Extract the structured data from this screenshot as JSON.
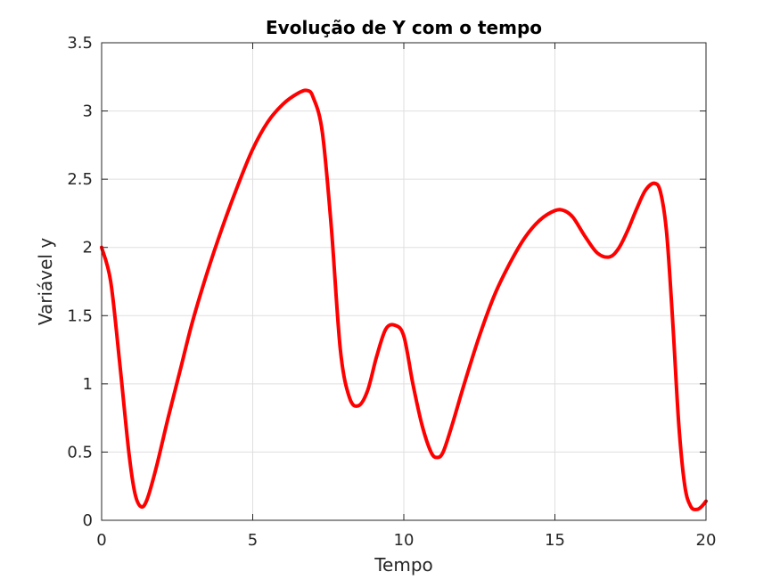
{
  "chart_data": {
    "type": "line",
    "title": "Evolução de Y com o tempo",
    "xlabel": "Tempo",
    "ylabel": "Variável y",
    "xlim": [
      0,
      20
    ],
    "ylim": [
      0,
      3.5
    ],
    "xticks": [
      0,
      5,
      10,
      15,
      20
    ],
    "xtick_labels": [
      "0",
      "5",
      "10",
      "15",
      "20"
    ],
    "yticks": [
      0,
      0.5,
      1,
      1.5,
      2,
      2.5,
      3,
      3.5
    ],
    "ytick_labels": [
      "0",
      "0.5",
      "1",
      "1.5",
      "2",
      "2.5",
      "3",
      "3.5"
    ],
    "grid": true,
    "series": [
      {
        "color": "#ff0000",
        "x": [
          0,
          0.3,
          0.6,
          0.9,
          1.1,
          1.3,
          1.5,
          1.8,
          2.2,
          2.6,
          3.0,
          3.5,
          4.0,
          4.5,
          5.0,
          5.5,
          6.0,
          6.5,
          6.8,
          7.0,
          7.3,
          7.6,
          7.9,
          8.2,
          8.5,
          8.8,
          9.1,
          9.4,
          9.7,
          10.0,
          10.3,
          10.6,
          10.9,
          11.1,
          11.3,
          11.6,
          12.0,
          12.5,
          13.0,
          13.5,
          14.0,
          14.5,
          15.0,
          15.3,
          15.6,
          16.0,
          16.4,
          16.8,
          17.1,
          17.4,
          17.7,
          18.0,
          18.3,
          18.5,
          18.7,
          18.9,
          19.1,
          19.3,
          19.5,
          19.7,
          19.85,
          20.0
        ],
        "y": [
          2.0,
          1.75,
          1.15,
          0.5,
          0.2,
          0.1,
          0.15,
          0.38,
          0.75,
          1.1,
          1.45,
          1.82,
          2.15,
          2.45,
          2.72,
          2.92,
          3.05,
          3.13,
          3.15,
          3.1,
          2.85,
          2.15,
          1.25,
          0.9,
          0.84,
          0.95,
          1.2,
          1.4,
          1.43,
          1.35,
          1.0,
          0.7,
          0.5,
          0.46,
          0.5,
          0.7,
          1.0,
          1.35,
          1.65,
          1.88,
          2.07,
          2.2,
          2.27,
          2.27,
          2.22,
          2.08,
          1.96,
          1.93,
          1.99,
          2.12,
          2.28,
          2.42,
          2.47,
          2.4,
          2.1,
          1.45,
          0.7,
          0.25,
          0.1,
          0.08,
          0.1,
          0.14
        ]
      }
    ]
  }
}
